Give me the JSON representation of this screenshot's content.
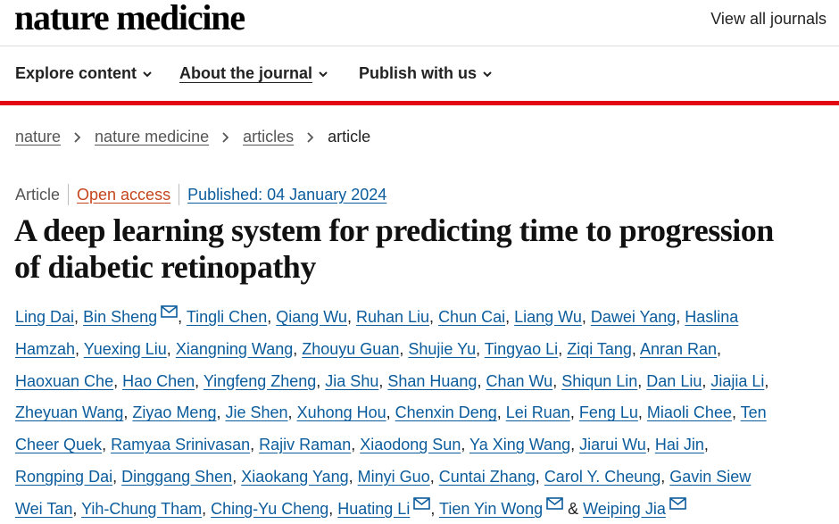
{
  "header": {
    "logo": "nature medicine",
    "view_all": "View all journals"
  },
  "nav": {
    "items": [
      {
        "label": "Explore content"
      },
      {
        "label": "About the journal"
      },
      {
        "label": "Publish with us"
      }
    ]
  },
  "breadcrumb": {
    "items": [
      "nature",
      "nature medicine",
      "articles"
    ],
    "current": "article"
  },
  "article": {
    "type": "Article",
    "access": "Open access",
    "published": "Published: 04 January 2024",
    "title": "A deep learning system for predicting time to progression of diabetic retinopathy",
    "authors": [
      "Ling Dai",
      "Bin Sheng",
      "Tingli Chen",
      "Qiang Wu",
      "Ruhan Liu",
      "Chun Cai",
      "Liang Wu",
      "Dawei Yang",
      "Haslina Hamzah",
      "Yuexing Liu",
      "Xiangning Wang",
      "Zhouyu Guan",
      "Shujie Yu",
      "Tingyao Li",
      "Ziqi Tang",
      "Anran Ran",
      "Haoxuan Che",
      "Hao Chen",
      "Yingfeng Zheng",
      "Jia Shu",
      "Shan Huang",
      "Chan Wu",
      "Shiqun Lin",
      "Dan Liu",
      "Jiajia Li",
      "Zheyuan Wang",
      "Ziyao Meng",
      "Jie Shen",
      "Xuhong Hou",
      "Chenxin Deng",
      "Lei Ruan",
      "Feng Lu",
      "Miaoli Chee",
      "Ten Cheer Quek",
      "Ramyaa Srinivasan",
      "Rajiv Raman",
      "Xiaodong Sun",
      "Ya Xing Wang",
      "Jiarui Wu",
      "Hai Jin",
      "Rongping Dai",
      "Dinggang Shen",
      "Xiaokang Yang",
      "Minyi Guo",
      "Cuntai Zhang",
      "Carol Y. Cheung",
      "Gavin Siew Wei Tan",
      "Yih-Chung Tham",
      "Ching-Yu Cheng",
      "Huating Li",
      "Tien Yin Wong",
      "Weiping Jia"
    ],
    "corresponding": [
      "Bin Sheng",
      "Huating Li",
      "Tien Yin Wong",
      "Weiping Jia"
    ],
    "author_separator": ", ",
    "final_separator": " & "
  },
  "icons": {
    "mail": "envelope-icon",
    "nav_chevron": "chevron-down-icon",
    "breadcrumb_separator": "chevron-right-icon"
  },
  "colors": {
    "brand_red": "#e30613",
    "link_blue": "#0b5c9c",
    "open_access_orange": "#c4451c",
    "text": "#222222"
  }
}
